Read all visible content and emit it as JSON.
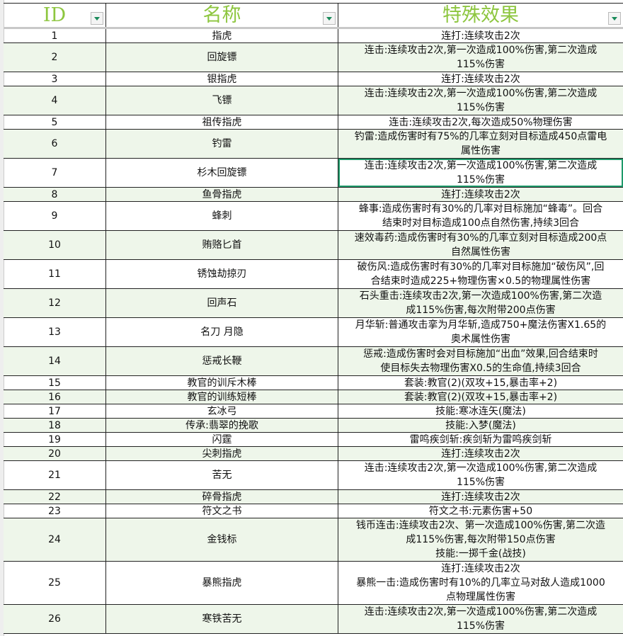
{
  "header": {
    "id": "ID",
    "name": "名称",
    "effect": "特殊效果"
  },
  "colors": {
    "header_text": "#8dc63f",
    "alt_row": "#eef6ea",
    "selection": "#1e9a6a"
  },
  "selected_row_id": "7",
  "rows": [
    {
      "id": "1",
      "name": "指虎",
      "effect": "连打:连续攻击2次"
    },
    {
      "id": "2",
      "name": "回旋镖",
      "effect": "连击:连续攻击2次,第一次造成100%伤害,第二次造成\n115%伤害"
    },
    {
      "id": "3",
      "name": "银指虎",
      "effect": "连打:连续攻击2次"
    },
    {
      "id": "4",
      "name": "飞镖",
      "effect": "连击:连续攻击2次,第一次造成100%伤害,第二次造成\n115%伤害"
    },
    {
      "id": "5",
      "name": "祖传指虎",
      "effect": "连击:连续攻击2次,每次造成50%物理伤害"
    },
    {
      "id": "6",
      "name": "钓雷",
      "effect": "钓雷:造成伤害时有75%的几率立刻对目标造成450点雷电\n属性伤害"
    },
    {
      "id": "7",
      "name": "杉木回旋镖",
      "effect": "连击:连续攻击2次,第一次造成100%伤害,第二次造成\n115%伤害"
    },
    {
      "id": "8",
      "name": "鱼骨指虎",
      "effect": "连打:连续攻击2次"
    },
    {
      "id": "9",
      "name": "蜂刺",
      "effect": "蜂事:造成伤害时有30%的几率对目标施加“蜂毒”。回合\n结束时对目标造成100点自然伤害,持续3回合"
    },
    {
      "id": "10",
      "name": "贿赂匕首",
      "effect": "速效毒药:造成伤害时有30%的几率立刻对目标造成200点\n自然属性伤害"
    },
    {
      "id": "11",
      "name": "锈蚀劫掠刃",
      "effect": "破伤风:造成伤害时有30%的几率对目标施加“破伤风”,回\n合结束时造成225+物理伤害×0.5的物理属性伤害"
    },
    {
      "id": "12",
      "name": "回声石",
      "effect": "石头重击:连续攻击2次,第一次造成100%伤害,第二次造\n成115%伤害,每次附带200点伤害"
    },
    {
      "id": "13",
      "name": "名刀 月隐",
      "effect": "月华斩:普通攻击挛为月华斩,造成750+魔法伤害X1.65的\n奥术属性伤害"
    },
    {
      "id": "14",
      "name": "惩戒长鞭",
      "effect": "惩戒:造成伤害时会对目标施加“出血”效果,回合结束时\n使目标失去物理伤害X0.5的生命值,持续3回合"
    },
    {
      "id": "15",
      "name": "教官的训斥木棒",
      "effect": "套装:教官(2)(双攻+15,暴击率+2)"
    },
    {
      "id": "16",
      "name": "教官的训练短棒",
      "effect": "套装:教官(2)(双攻+15,暴击率+2)"
    },
    {
      "id": "17",
      "name": "玄冰弓",
      "effect": "技能:寒冰连矢(魔法)"
    },
    {
      "id": "18",
      "name": "传承:翡翠的挽歌",
      "effect": "技能:入梦(魔法)"
    },
    {
      "id": "19",
      "name": "闪霆",
      "effect": "雷鸣疾剑斩:疾剑斩为雷鸣疾剑斩"
    },
    {
      "id": "20",
      "name": "尖刺指虎",
      "effect": "连打:连续攻击2次"
    },
    {
      "id": "21",
      "name": "苦无",
      "effect": "连击:连续攻击2次,第一次造成100%伤害,第二次造成\n115%伤害"
    },
    {
      "id": "22",
      "name": "碎骨指虎",
      "effect": "连打:连续攻击2次"
    },
    {
      "id": "23",
      "name": "符文之书",
      "effect": "符文之书:元素伤害+50"
    },
    {
      "id": "24",
      "name": "金钱标",
      "effect": "钱币连击:连续攻击2次、第一次造成100%伤害,第二次造\n成115%伤害,每次附带150点伤害\n技能:一掷千金(战技)"
    },
    {
      "id": "25",
      "name": "暴熊指虎",
      "effect": "连打:连续攻击2次\n暴熊一击:造成伤害时有10%的几率立马对敌人造成1000\n点物理属性伤害"
    },
    {
      "id": "26",
      "name": "寒铁苦无",
      "effect": "连击:连续攻击2次,第一次造成100%伤害,第二次造成\n115%伤害"
    }
  ]
}
